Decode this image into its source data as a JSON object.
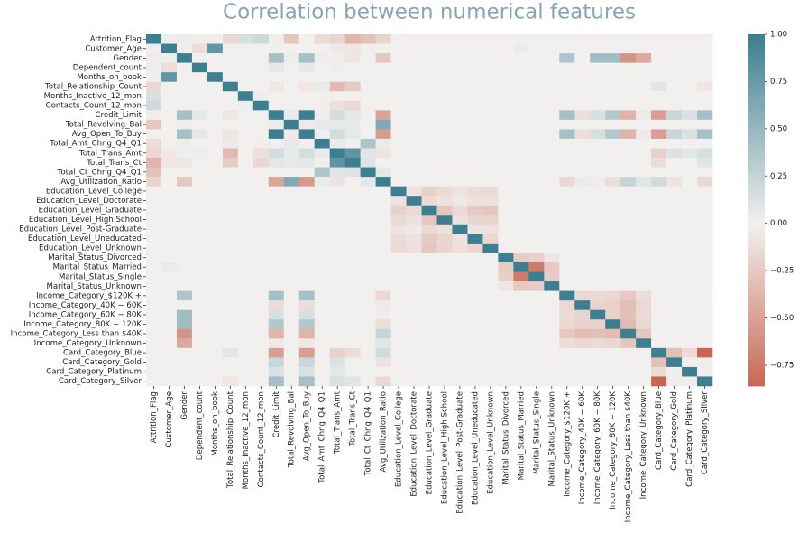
{
  "chart_data": {
    "type": "heatmap",
    "title": "Correlation between numerical features",
    "labels": [
      "Attrition_Flag",
      "Customer_Age",
      "Gender",
      "Dependent_count",
      "Months_on_book",
      "Total_Relationship_Count",
      "Months_Inactive_12_mon",
      "Contacts_Count_12_mon",
      "Credit_Limit",
      "Total_Revolving_Bal",
      "Avg_Open_To_Buy",
      "Total_Amt_Chng_Q4_Q1",
      "Total_Trans_Amt",
      "Total_Trans_Ct",
      "Total_Ct_Chng_Q4_Q1",
      "Avg_Utilization_Ratio",
      "Education_Level_College",
      "Education_Level_Doctorate",
      "Education_Level_Graduate",
      "Education_Level_High School",
      "Education_Level_Post-Graduate",
      "Education_Level_Uneducated",
      "Education_Level_Unknown",
      "Marital_Status_Divorced",
      "Marital_Status_Married",
      "Marital_Status_Single",
      "Marital_Status_Unknown",
      "Income_Category_$120K +",
      "Income_Category_40K − 60K",
      "Income_Category_60K − 80K",
      "Income_Category_80K − 120K",
      "Income_Category_Less than $40K",
      "Income_Category_Unknown",
      "Card_Category_Blue",
      "Card_Category_Gold",
      "Card_Category_Platinum",
      "Card_Category_Silver"
    ],
    "matrix": [
      [
        1,
        0.02,
        -0.04,
        0.02,
        0.01,
        -0.15,
        0.15,
        0.2,
        -0.02,
        -0.26,
        0,
        -0.13,
        -0.17,
        -0.37,
        -0.29,
        -0.18,
        0,
        0,
        0,
        0,
        0,
        0,
        0,
        0,
        0,
        0,
        0,
        0,
        0,
        0,
        0,
        0,
        0,
        0,
        0,
        0,
        0
      ],
      [
        0.02,
        1,
        0.02,
        -0.12,
        0.79,
        0,
        0,
        0,
        0,
        0,
        0,
        0,
        -0.05,
        -0.07,
        0,
        0,
        0,
        0,
        0,
        0,
        0,
        0,
        0,
        0,
        0.05,
        0,
        0,
        0,
        0,
        0,
        0,
        0,
        0,
        0,
        0,
        0,
        0
      ],
      [
        -0.04,
        0.02,
        1,
        0,
        0,
        0,
        0,
        0,
        0.42,
        0.03,
        0.42,
        0.03,
        0.02,
        -0.07,
        0,
        -0.26,
        0,
        0,
        0,
        0,
        0,
        0,
        0,
        0,
        0,
        0,
        0,
        0.38,
        0,
        0.45,
        0.45,
        -0.58,
        -0.45,
        0,
        0,
        0,
        0
      ],
      [
        0.02,
        -0.12,
        0,
        1,
        0,
        0,
        0,
        0,
        0.07,
        0,
        0.07,
        0,
        0.03,
        0,
        0,
        0,
        0,
        0,
        0,
        0,
        0,
        0,
        0,
        0,
        0,
        0,
        0,
        0,
        0,
        0,
        0,
        0,
        0,
        0,
        0,
        0,
        0
      ],
      [
        0.01,
        0.79,
        0,
        0,
        1,
        0,
        0,
        0,
        0,
        0,
        0,
        0,
        0,
        0,
        0,
        0,
        0,
        0,
        0,
        0,
        0,
        0,
        0,
        0,
        0,
        0,
        0,
        0,
        0,
        0,
        0,
        0,
        0,
        0,
        0,
        0,
        0
      ],
      [
        -0.15,
        0,
        0,
        0,
        0,
        1,
        0,
        0,
        -0.07,
        0,
        -0.07,
        0.05,
        -0.35,
        -0.24,
        0,
        0,
        0,
        0,
        0,
        0,
        0,
        0,
        0,
        0,
        0,
        0,
        0,
        0,
        0,
        0,
        0,
        0,
        0,
        0.09,
        0,
        0,
        -0.07
      ],
      [
        0.15,
        0,
        0,
        0,
        0,
        0,
        1,
        0.03,
        0,
        0,
        0,
        0,
        0,
        0,
        0,
        0,
        0,
        0,
        0,
        0,
        0,
        0,
        0,
        0,
        0,
        0,
        0,
        0,
        0,
        0,
        0,
        0,
        0,
        0,
        0,
        0,
        0
      ],
      [
        0.2,
        0,
        0,
        0,
        0,
        0,
        0.03,
        1,
        0,
        0,
        0,
        -0.02,
        -0.11,
        -0.15,
        0,
        0,
        0,
        0,
        0,
        0,
        0,
        0,
        0,
        0,
        0,
        0,
        0,
        0,
        0,
        0,
        0,
        0,
        0,
        0,
        0,
        0,
        0
      ],
      [
        -0.02,
        0,
        0.42,
        0.07,
        0,
        -0.07,
        0,
        0,
        1,
        0.04,
        1,
        0.01,
        0.17,
        0.08,
        0,
        -0.48,
        0,
        0,
        0,
        0,
        0,
        0,
        0,
        0,
        0,
        0,
        0,
        0.42,
        -0.12,
        0.15,
        0.35,
        -0.38,
        -0.05,
        -0.52,
        0.23,
        0.13,
        0.42
      ],
      [
        -0.26,
        0,
        0.03,
        0,
        0,
        0,
        0,
        0,
        0.04,
        1,
        -0.05,
        0.06,
        0.06,
        0.06,
        0,
        0.62,
        0,
        0,
        0,
        0,
        0,
        0,
        0,
        0,
        0,
        0,
        0,
        0,
        0,
        0,
        0,
        0,
        0,
        0,
        0,
        0,
        0
      ],
      [
        0,
        0,
        0.42,
        0.07,
        0,
        -0.07,
        0,
        0,
        1,
        -0.05,
        1,
        0.01,
        0.17,
        0.07,
        0,
        -0.54,
        0,
        0,
        0,
        0,
        0,
        0,
        0,
        0,
        0,
        0,
        0,
        0.42,
        -0.12,
        0.15,
        0.35,
        -0.38,
        -0.05,
        -0.52,
        0.23,
        0.13,
        0.42
      ],
      [
        -0.13,
        0,
        0.03,
        0,
        0,
        0.05,
        0,
        -0.02,
        0.01,
        0.06,
        0.01,
        1,
        0.04,
        0.01,
        0.38,
        0.04,
        0,
        0,
        0,
        0,
        0,
        0,
        0,
        0,
        0,
        0,
        0,
        0,
        0,
        0,
        0,
        0,
        0,
        0,
        0,
        0,
        0
      ],
      [
        -0.17,
        -0.05,
        0.02,
        0.03,
        0,
        -0.35,
        0,
        -0.11,
        0.17,
        0.06,
        0.17,
        0.04,
        1,
        0.81,
        0.09,
        -0.08,
        0,
        0,
        0,
        0,
        0,
        0,
        0,
        0,
        0,
        0,
        0,
        0,
        0,
        0,
        0,
        0,
        0,
        -0.2,
        0.12,
        0.08,
        0.15
      ],
      [
        -0.37,
        -0.07,
        -0.07,
        0,
        0,
        -0.24,
        0,
        -0.15,
        0.08,
        0.06,
        0.07,
        0.01,
        0.81,
        1,
        0.11,
        0,
        0,
        0,
        0,
        0,
        0,
        0,
        0,
        0,
        0,
        0,
        0,
        0,
        0,
        0,
        0,
        0,
        0,
        -0.13,
        0,
        0,
        0.1
      ],
      [
        -0.29,
        0,
        0,
        0,
        0,
        0,
        0,
        0,
        0,
        0,
        0,
        0.38,
        0.09,
        0.11,
        1,
        0.07,
        0,
        0,
        0,
        0,
        0,
        0,
        0,
        0,
        0,
        0,
        0,
        0,
        0,
        0,
        0,
        0,
        0,
        0,
        0,
        0,
        0
      ],
      [
        -0.18,
        0,
        -0.26,
        0,
        0,
        0,
        0,
        0,
        -0.48,
        0.62,
        -0.54,
        0.04,
        -0.08,
        0,
        0.07,
        1,
        0,
        0,
        0,
        0,
        0,
        0,
        0,
        0,
        0,
        0,
        0,
        -0.15,
        0.05,
        -0.03,
        -0.12,
        0.25,
        0.1,
        0.18,
        -0.08,
        0,
        -0.15
      ],
      [
        0,
        0,
        0,
        0,
        0,
        0,
        0,
        0,
        0,
        0,
        0,
        0,
        0,
        0,
        0,
        0,
        1,
        -0.08,
        -0.2,
        -0.14,
        -0.08,
        -0.13,
        -0.14,
        0,
        0,
        0,
        0,
        0,
        0,
        0,
        0,
        0,
        0,
        0,
        0,
        0,
        0
      ],
      [
        0,
        0,
        0,
        0,
        0,
        0,
        0,
        0,
        0,
        0,
        0,
        0,
        0,
        0,
        0,
        0,
        -0.08,
        1,
        -0.14,
        -0.1,
        -0.05,
        -0.09,
        -0.1,
        0,
        0,
        0,
        0,
        0,
        0,
        0,
        0,
        0,
        0,
        0,
        0,
        0,
        0
      ],
      [
        0,
        0,
        0,
        0,
        0,
        0,
        0,
        0,
        0,
        0,
        0,
        0,
        0,
        0,
        0,
        0,
        -0.2,
        -0.14,
        1,
        -0.26,
        -0.14,
        -0.24,
        -0.26,
        0,
        0,
        0,
        0,
        0,
        0,
        0,
        0,
        0,
        0,
        0,
        0,
        0,
        0
      ],
      [
        0,
        0,
        0,
        0,
        0,
        0,
        0,
        0,
        0,
        0,
        0,
        0,
        0,
        0,
        0,
        0,
        -0.14,
        -0.1,
        -0.26,
        1,
        -0.1,
        -0.17,
        -0.18,
        0,
        0,
        0,
        0,
        0,
        0,
        0,
        0,
        0,
        0,
        0,
        0,
        0,
        0
      ],
      [
        0,
        0,
        0,
        0,
        0,
        0,
        0,
        0,
        0,
        0,
        0,
        0,
        0,
        0,
        0,
        0,
        -0.08,
        -0.05,
        -0.14,
        -0.1,
        1,
        -0.09,
        -0.1,
        0,
        0,
        0,
        0,
        0,
        0,
        0,
        0,
        0,
        0,
        0,
        0,
        0,
        0
      ],
      [
        0,
        0,
        0,
        0,
        0,
        0,
        0,
        0,
        0,
        0,
        0,
        0,
        0,
        0,
        0,
        0,
        -0.13,
        -0.09,
        -0.24,
        -0.17,
        -0.09,
        1,
        -0.17,
        0,
        0,
        0,
        0,
        0,
        0,
        0,
        0,
        0,
        0,
        0,
        0,
        0,
        0
      ],
      [
        0,
        0,
        0,
        0,
        0,
        0,
        0,
        0,
        0,
        0,
        0,
        0,
        0,
        0,
        0,
        0,
        -0.14,
        -0.1,
        -0.26,
        -0.18,
        -0.1,
        -0.17,
        1,
        0,
        0,
        0,
        0,
        0,
        0,
        0,
        0,
        0,
        0,
        0,
        0,
        0,
        0
      ],
      [
        0,
        0,
        0,
        0,
        0,
        0,
        0,
        0,
        0,
        0,
        0,
        0,
        0,
        0,
        0,
        0,
        0,
        0,
        0,
        0,
        0,
        0,
        0,
        1,
        -0.23,
        -0.21,
        -0.07,
        0,
        0,
        0,
        0,
        0,
        0,
        0,
        0,
        0,
        0
      ],
      [
        0,
        0.05,
        0,
        0,
        0,
        0,
        0,
        0,
        0,
        0,
        0,
        0,
        0,
        0,
        0,
        0,
        0,
        0,
        0,
        0,
        0,
        0,
        0,
        -0.23,
        1,
        -0.74,
        -0.25,
        0,
        0,
        0,
        0,
        0,
        0,
        0,
        0,
        0,
        0
      ],
      [
        0,
        0,
        0,
        0,
        0,
        0,
        0,
        0,
        0,
        0,
        0,
        0,
        0,
        0,
        0,
        0,
        0,
        0,
        0,
        0,
        0,
        0,
        0,
        -0.21,
        -0.74,
        1,
        -0.22,
        0,
        0,
        0,
        0,
        0,
        0,
        0,
        0,
        0,
        0
      ],
      [
        0,
        0,
        0,
        0,
        0,
        0,
        0,
        0,
        0,
        0,
        0,
        0,
        0,
        0,
        0,
        0,
        0,
        0,
        0,
        0,
        0,
        0,
        0,
        -0.07,
        -0.25,
        -0.22,
        1,
        0,
        0,
        0,
        0,
        0,
        0,
        0,
        0,
        0,
        0
      ],
      [
        0,
        0,
        0.38,
        0,
        0,
        0,
        0,
        0,
        0.42,
        0,
        0.42,
        0,
        0,
        0,
        0,
        -0.15,
        0,
        0,
        0,
        0,
        0,
        0,
        0,
        0,
        0,
        0,
        0,
        1,
        -0.15,
        -0.14,
        -0.16,
        -0.25,
        -0.12,
        0,
        0,
        0,
        0
      ],
      [
        0,
        0,
        0,
        0,
        0,
        0,
        0,
        0,
        -0.12,
        0,
        -0.12,
        0,
        0,
        0,
        0,
        0.05,
        0,
        0,
        0,
        0,
        0,
        0,
        0,
        0,
        0,
        0,
        0,
        -0.15,
        1,
        -0.18,
        -0.2,
        -0.32,
        -0.15,
        0,
        0,
        0,
        0
      ],
      [
        0,
        0,
        0.45,
        0,
        0,
        0,
        0,
        0,
        0.15,
        0,
        0.15,
        0,
        0,
        0,
        0,
        -0.03,
        0,
        0,
        0,
        0,
        0,
        0,
        0,
        0,
        0,
        0,
        0,
        -0.14,
        -0.18,
        1,
        -0.19,
        -0.3,
        -0.14,
        0,
        0,
        0,
        0
      ],
      [
        0,
        0,
        0.45,
        0,
        0,
        0,
        0,
        0,
        0.35,
        0,
        0.35,
        0,
        0,
        0,
        0,
        -0.12,
        0,
        0,
        0,
        0,
        0,
        0,
        0,
        0,
        0,
        0,
        0,
        -0.16,
        -0.2,
        -0.19,
        1,
        -0.33,
        -0.16,
        0,
        0,
        0,
        0
      ],
      [
        0,
        0,
        -0.58,
        0,
        0,
        0,
        0,
        0,
        -0.38,
        0,
        -0.38,
        0,
        0,
        0,
        0,
        0.25,
        0,
        0,
        0,
        0,
        0,
        0,
        0,
        0,
        0,
        0,
        0,
        -0.25,
        -0.32,
        -0.3,
        -0.33,
        1,
        -0.26,
        0,
        0,
        0,
        0
      ],
      [
        0,
        0,
        -0.45,
        0,
        0,
        0,
        0,
        0,
        -0.05,
        0,
        -0.05,
        0,
        0,
        0,
        0,
        0.1,
        0,
        0,
        0,
        0,
        0,
        0,
        0,
        0,
        0,
        0,
        0,
        -0.12,
        -0.15,
        -0.14,
        -0.16,
        -0.26,
        1,
        0,
        0,
        0,
        0
      ],
      [
        0,
        0,
        0,
        0,
        0,
        0.09,
        0,
        0,
        -0.52,
        0,
        -0.52,
        0,
        -0.2,
        -0.13,
        0,
        0.18,
        0,
        0,
        0,
        0,
        0,
        0,
        0,
        0,
        0,
        0,
        0,
        0,
        0,
        0,
        0,
        0,
        0,
        1,
        -0.3,
        -0.14,
        -0.87
      ],
      [
        0,
        0,
        0,
        0,
        0,
        0,
        0,
        0,
        0.23,
        0,
        0.23,
        0,
        0.12,
        0,
        0,
        -0.08,
        0,
        0,
        0,
        0,
        0,
        0,
        0,
        0,
        0,
        0,
        0,
        0,
        0,
        0,
        0,
        0,
        0,
        -0.3,
        1,
        -0.01,
        -0.03
      ],
      [
        0,
        0,
        0,
        0,
        0,
        0,
        0,
        0,
        0.13,
        0,
        0.13,
        0,
        0.08,
        0,
        0,
        0,
        0,
        0,
        0,
        0,
        0,
        0,
        0,
        0,
        0,
        0,
        0,
        0,
        0,
        0,
        0,
        0,
        0,
        -0.14,
        -0.01,
        1,
        -0.02
      ],
      [
        0,
        0,
        0,
        0,
        0,
        -0.07,
        0,
        0,
        0.42,
        0,
        0.42,
        0,
        0.15,
        0.1,
        0,
        -0.15,
        0,
        0,
        0,
        0,
        0,
        0,
        0,
        0,
        0,
        0,
        0,
        0,
        0,
        0,
        0,
        0,
        0,
        -0.87,
        -0.03,
        -0.02,
        1
      ]
    ],
    "colors": [
      "#c0533a",
      "#f2f0ef",
      "#3d7e90"
    ],
    "zlim": [
      -0.86,
      1.0
    ],
    "zticks": [
      {
        "value": 1,
        "label": "1.00"
      },
      {
        "value": 0.75,
        "label": "0.75"
      },
      {
        "value": 0.5,
        "label": "0.50"
      },
      {
        "value": 0.25,
        "label": "0.25"
      },
      {
        "value": 0,
        "label": "0.00"
      },
      {
        "value": -0.25,
        "label": "−0.25"
      },
      {
        "value": -0.5,
        "label": "−0.50"
      },
      {
        "value": -0.75,
        "label": "−0.75"
      }
    ]
  }
}
